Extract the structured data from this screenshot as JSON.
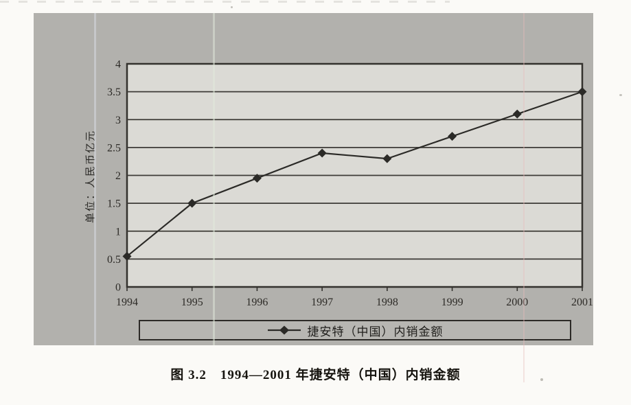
{
  "figure": {
    "caption": "图 3.2　1994—2001 年捷安特（中国）内销金额"
  },
  "chart_data": {
    "type": "line",
    "title": "",
    "categories": [
      "1994",
      "1995",
      "1996",
      "1997",
      "1998",
      "1999",
      "2000",
      "2001"
    ],
    "series": [
      {
        "name": "捷安特（中国）内销金额",
        "values": [
          0.55,
          1.5,
          1.95,
          2.4,
          2.3,
          2.7,
          3.1,
          3.5
        ]
      }
    ],
    "xlabel": "",
    "ylabel": "单位：人民币亿元",
    "ylim": [
      0,
      4
    ],
    "yticks": [
      0,
      0.5,
      1,
      1.5,
      2,
      2.5,
      3,
      3.5,
      4
    ],
    "grid": "horizontal",
    "legend_position": "bottom-box",
    "marker": "diamond",
    "colors": {
      "line": "#2b2a27",
      "plot_background": "#dbdad5",
      "outer_background": "#b2b1ad",
      "axis": "#33312d"
    }
  }
}
